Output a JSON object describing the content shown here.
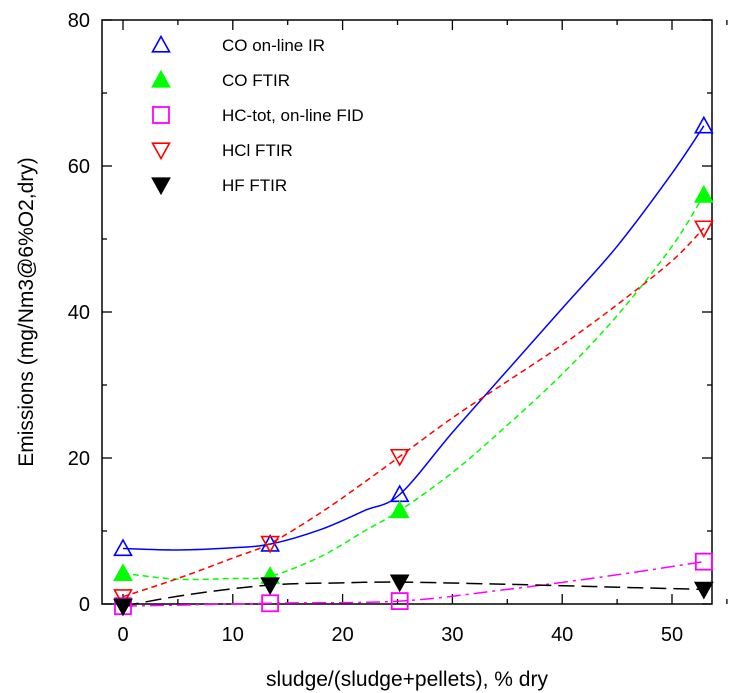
{
  "chart_data": {
    "type": "scatter",
    "xlabel": "sludge/(sludge+pellets), % dry",
    "ylabel": "Emissions  (mg/Nm3@6%O2,dry)",
    "xlim": [
      -2,
      56
    ],
    "ylim": [
      0,
      80
    ],
    "xticks": [
      0,
      10,
      20,
      30,
      40,
      50
    ],
    "yticks": [
      0,
      20,
      40,
      60,
      80
    ],
    "grid": false,
    "legend_position": "top-left",
    "series": [
      {
        "name": "CO on-line IR",
        "marker": "triangle-up-open",
        "color": "#0000ff",
        "x": [
          0,
          13.4,
          25.2,
          52.9
        ],
        "y": [
          7.6,
          8.2,
          15.0,
          65.5
        ],
        "curve": "solid",
        "curve_x": [
          0,
          5,
          10,
          13.4,
          18,
          22,
          25.2,
          30,
          35,
          40,
          45,
          50,
          52.9
        ],
        "curve_y": [
          7.6,
          7.4,
          7.7,
          8.2,
          10.2,
          12.8,
          15.0,
          23.5,
          32.0,
          40.5,
          49.0,
          59.0,
          65.5
        ]
      },
      {
        "name": "CO FTIR",
        "marker": "triangle-up-filled",
        "color": "#00ff00",
        "x": [
          0,
          13.4,
          25.2,
          52.9
        ],
        "y": [
          4.2,
          3.8,
          12.8,
          56.0
        ],
        "curve": "dashed",
        "curve_x": [
          0,
          5,
          10,
          13.4,
          18,
          22,
          25.2,
          30,
          35,
          40,
          45,
          50,
          52.9
        ],
        "curve_y": [
          4.2,
          3.4,
          3.5,
          3.8,
          6.5,
          10.0,
          12.8,
          18.0,
          24.5,
          31.5,
          39.5,
          49.0,
          56.0
        ]
      },
      {
        "name": "HC-tot, on-line FID",
        "marker": "square-open",
        "color": "#ff00ff",
        "x": [
          0,
          13.4,
          25.2,
          52.9
        ],
        "y": [
          -0.3,
          0.1,
          0.4,
          5.8
        ],
        "curve": "dashdot",
        "curve_x": [
          0,
          13.4,
          25.2,
          35,
          45,
          52.9
        ],
        "curve_y": [
          -0.3,
          0.1,
          0.4,
          2.0,
          4.0,
          5.8
        ]
      },
      {
        "name": "HCl FTIR",
        "marker": "triangle-down-open",
        "color": "#ff0000",
        "x": [
          0,
          13.4,
          25.2,
          52.9
        ],
        "y": [
          1.0,
          8.3,
          20.2,
          51.5
        ],
        "curve": "dashed",
        "curve_x": [
          0,
          5,
          10,
          13.4,
          18,
          22,
          25.2,
          30,
          35,
          40,
          45,
          50,
          52.9
        ],
        "curve_y": [
          1.0,
          3.5,
          6.3,
          8.3,
          12.5,
          16.7,
          20.2,
          25.5,
          30.5,
          35.5,
          41.0,
          47.0,
          51.5
        ]
      },
      {
        "name": "HF FTIR",
        "marker": "triangle-down-filled",
        "color": "#000000",
        "x": [
          0,
          13.4,
          25.2,
          52.9
        ],
        "y": [
          -0.3,
          2.6,
          3.0,
          2.0
        ],
        "curve": "longdash",
        "curve_x": [
          0,
          6,
          13.4,
          20,
          25.2,
          35,
          45,
          52.9
        ],
        "curve_y": [
          -0.3,
          1.3,
          2.6,
          2.9,
          3.0,
          2.7,
          2.3,
          2.0
        ]
      }
    ]
  }
}
